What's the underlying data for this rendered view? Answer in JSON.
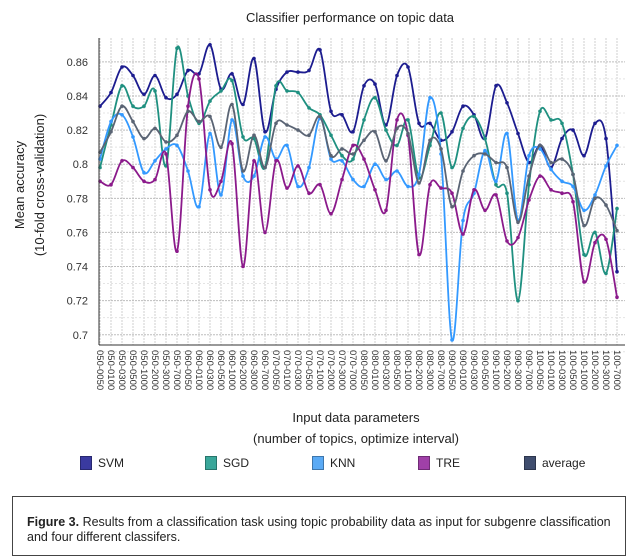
{
  "chart_data": {
    "type": "line",
    "title": "Classifier performance on topic data",
    "xlabel": "Input data parameters",
    "xlabel_sub": "(number of topics, optimize interval)",
    "ylabel": "Mean accuracy",
    "ylabel_sub": "(10-fold cross-validation)",
    "ylim": [
      0.694,
      0.874
    ],
    "yticks": [
      0.7,
      0.72,
      0.74,
      0.76,
      0.78,
      0.8,
      0.82,
      0.84,
      0.86
    ],
    "ytick_labels": [
      "0.7",
      "0.72",
      "0.74",
      "0.76",
      "0.78",
      "0.8",
      "0.82",
      "0.84",
      "0.86"
    ],
    "grid": true,
    "legend_position": "bottom",
    "categories": [
      "050-0050",
      "050-0100",
      "050-0300",
      "050-0500",
      "050-1000",
      "050-2000",
      "050-3000",
      "050-7000",
      "060-0050",
      "060-0100",
      "060-0300",
      "060-0500",
      "060-1000",
      "060-2000",
      "060-3000",
      "060-7000",
      "070-0050",
      "070-0100",
      "070-0300",
      "070-0500",
      "070-1000",
      "070-2000",
      "070-3000",
      "070-7000",
      "080-0050",
      "080-0100",
      "080-0300",
      "080-0500",
      "080-1000",
      "080-2000",
      "080-3000",
      "080-7000",
      "090-0050",
      "090-0100",
      "090-0300",
      "090-0500",
      "090-1000",
      "090-2000",
      "090-3000",
      "090-7000",
      "100-0050",
      "100-0100",
      "100-0300",
      "100-0500",
      "100-1000",
      "100-2000",
      "100-3000",
      "100-7000"
    ],
    "series": [
      {
        "name": "SVM",
        "color": "#1c1c8f",
        "legend_color": "#3a3aa0",
        "values": [
          0.834,
          0.842,
          0.857,
          0.852,
          0.841,
          0.852,
          0.839,
          0.841,
          0.855,
          0.853,
          0.87,
          0.844,
          0.853,
          0.835,
          0.862,
          0.819,
          0.844,
          0.854,
          0.854,
          0.855,
          0.867,
          0.831,
          0.829,
          0.819,
          0.846,
          0.847,
          0.823,
          0.852,
          0.857,
          0.824,
          0.824,
          0.814,
          0.819,
          0.834,
          0.829,
          0.815,
          0.846,
          0.836,
          0.818,
          0.801,
          0.811,
          0.798,
          0.815,
          0.82,
          0.805,
          0.824,
          0.815,
          0.737
        ]
      },
      {
        "name": "SGD",
        "color": "#1f9080",
        "legend_color": "#3aa79a",
        "values": [
          0.798,
          0.823,
          0.846,
          0.834,
          0.834,
          0.843,
          0.799,
          0.868,
          0.84,
          0.824,
          0.837,
          0.843,
          0.849,
          0.816,
          0.815,
          0.798,
          0.846,
          0.843,
          0.842,
          0.833,
          0.829,
          0.817,
          0.805,
          0.803,
          0.826,
          0.839,
          0.82,
          0.811,
          0.826,
          0.792,
          0.811,
          0.83,
          0.798,
          0.821,
          0.828,
          0.815,
          0.788,
          0.783,
          0.72,
          0.788,
          0.831,
          0.826,
          0.824,
          0.794,
          0.747,
          0.76,
          0.736,
          0.774
        ]
      },
      {
        "name": "KNN",
        "color": "#3399ff",
        "legend_color": "#5aaaf5",
        "values": [
          0.803,
          0.825,
          0.829,
          0.816,
          0.795,
          0.802,
          0.809,
          0.811,
          0.796,
          0.775,
          0.818,
          0.782,
          0.826,
          0.793,
          0.793,
          0.816,
          0.803,
          0.811,
          0.787,
          0.798,
          0.827,
          0.803,
          0.802,
          0.791,
          0.787,
          0.8,
          0.791,
          0.796,
          0.787,
          0.794,
          0.839,
          0.806,
          0.697,
          0.767,
          0.783,
          0.808,
          0.79,
          0.818,
          0.767,
          0.805,
          0.809,
          0.797,
          0.79,
          0.787,
          0.773,
          0.782,
          0.799,
          0.811
        ]
      },
      {
        "name": "TRE",
        "color": "#8b1a8b",
        "legend_color": "#a040a8",
        "values": [
          0.79,
          0.788,
          0.802,
          0.798,
          0.79,
          0.791,
          0.806,
          0.749,
          0.834,
          0.85,
          0.785,
          0.79,
          0.812,
          0.74,
          0.802,
          0.76,
          0.802,
          0.786,
          0.799,
          0.783,
          0.788,
          0.771,
          0.791,
          0.811,
          0.803,
          0.785,
          0.773,
          0.826,
          0.817,
          0.747,
          0.788,
          0.786,
          0.783,
          0.759,
          0.785,
          0.773,
          0.782,
          0.755,
          0.757,
          0.779,
          0.793,
          0.785,
          0.783,
          0.778,
          0.731,
          0.754,
          0.756,
          0.722
        ]
      },
      {
        "name": "average",
        "color": "#5a6474",
        "legend_color": "#3f4d6e",
        "values": [
          0.807,
          0.819,
          0.834,
          0.825,
          0.815,
          0.821,
          0.813,
          0.817,
          0.831,
          0.825,
          0.828,
          0.81,
          0.835,
          0.796,
          0.817,
          0.798,
          0.824,
          0.823,
          0.82,
          0.817,
          0.828,
          0.805,
          0.809,
          0.806,
          0.814,
          0.819,
          0.802,
          0.821,
          0.818,
          0.789,
          0.814,
          0.809,
          0.775,
          0.796,
          0.805,
          0.806,
          0.801,
          0.798,
          0.766,
          0.793,
          0.811,
          0.801,
          0.803,
          0.794,
          0.764,
          0.78,
          0.776,
          0.761
        ]
      }
    ]
  },
  "caption": {
    "label": "Figure 3.",
    "text": " Results from a classification task using topic probability data as input for subgenre classification and four different classifers."
  }
}
